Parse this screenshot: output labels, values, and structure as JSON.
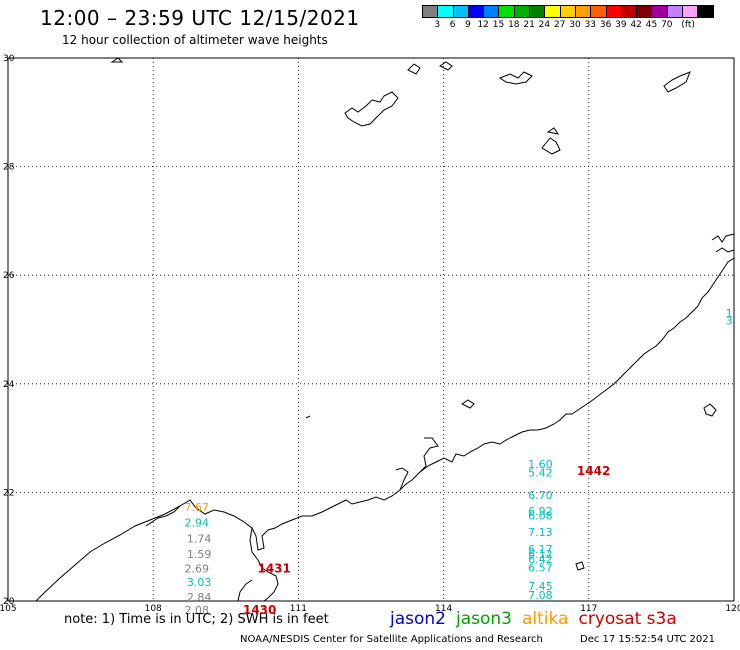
{
  "header": {
    "title": "12:00 – 23:59 UTC 12/15/2021",
    "subtitle": "12 hour collection of altimeter wave heights"
  },
  "legend": {
    "colors": [
      "#808080",
      "#00ffff",
      "#00c0ff",
      "#0000ff",
      "#0080ff",
      "#00e000",
      "#00b000",
      "#008000",
      "#ffff00",
      "#ffd000",
      "#ffa000",
      "#ff6000",
      "#ff0000",
      "#c00000",
      "#800000",
      "#a000a0",
      "#c080ff",
      "#ffa0ff",
      "#000000"
    ],
    "labels": [
      "3",
      "6",
      "9",
      "12",
      "15",
      "18",
      "21",
      "24",
      "27",
      "30",
      "33",
      "36",
      "39",
      "42",
      "45",
      "70",
      "(ft)"
    ]
  },
  "axes": {
    "lon_ticks": [
      "105",
      "108",
      "111",
      "114",
      "117",
      "120"
    ],
    "lat_ticks": [
      "30",
      "28",
      "26",
      "24",
      "22",
      "20"
    ]
  },
  "observations": [
    {
      "value": "7.67",
      "lon": 108.9,
      "lat": 21.73,
      "color": "#ffa000"
    },
    {
      "value": "2.94",
      "lon": 108.9,
      "lat": 21.45,
      "color": "#00c0c0"
    },
    {
      "value": "1.74",
      "lon": 108.95,
      "lat": 21.15,
      "color": "#808080"
    },
    {
      "value": "1.59",
      "lon": 108.95,
      "lat": 20.87,
      "color": "#808080"
    },
    {
      "value": "2.69",
      "lon": 108.9,
      "lat": 20.6,
      "color": "#808080"
    },
    {
      "value": "3.03",
      "lon": 108.95,
      "lat": 20.35,
      "color": "#00c0c0"
    },
    {
      "value": "2.84",
      "lon": 108.95,
      "lat": 20.07,
      "color": "#808080"
    },
    {
      "value": "2.08",
      "lon": 108.9,
      "lat": 19.83,
      "color": "#808080"
    },
    {
      "value": "1.60",
      "lon": 116.0,
      "lat": 22.52,
      "color": "#00c0c0"
    },
    {
      "value": "5.42",
      "lon": 116.0,
      "lat": 22.37,
      "color": "#00c0c0"
    },
    {
      "value": "6.70",
      "lon": 116.0,
      "lat": 21.95,
      "color": "#00c0c0"
    },
    {
      "value": "6.92",
      "lon": 116.0,
      "lat": 21.66,
      "color": "#00c0c0"
    },
    {
      "value": "6.08",
      "lon": 116.0,
      "lat": 21.57,
      "color": "#00c0c0"
    },
    {
      "value": "7.13",
      "lon": 116.0,
      "lat": 21.27,
      "color": "#00c0c0"
    },
    {
      "value": "6.17",
      "lon": 116.0,
      "lat": 20.96,
      "color": "#00c0c0"
    },
    {
      "value": "6.12",
      "lon": 116.0,
      "lat": 20.87,
      "color": "#00c0c0"
    },
    {
      "value": "6.42",
      "lon": 116.0,
      "lat": 20.77,
      "color": "#00c0c0"
    },
    {
      "value": "6.57",
      "lon": 116.0,
      "lat": 20.62,
      "color": "#00c0c0"
    },
    {
      "value": "7.45",
      "lon": 116.0,
      "lat": 20.28,
      "color": "#00c0c0"
    },
    {
      "value": "7.08",
      "lon": 116.0,
      "lat": 20.11,
      "color": "#00c0c0"
    },
    {
      "value": "1",
      "lon": 119.9,
      "lat": 25.3,
      "color": "#00c0c0"
    },
    {
      "value": "3",
      "lon": 119.9,
      "lat": 25.17,
      "color": "#00c0c0"
    }
  ],
  "pass_times": [
    {
      "value": "1442",
      "lon": 117.1,
      "lat": 22.39
    },
    {
      "value": "1431",
      "lon": 110.5,
      "lat": 20.6
    },
    {
      "value": "1430",
      "lon": 110.2,
      "lat": 19.83
    }
  ],
  "footer": {
    "note": "note: 1) Time is in UTC; 2) SWH is in feet",
    "satellites": [
      {
        "name": "jason2",
        "color": "#0000cc"
      },
      {
        "name": "jason3",
        "color": "#00a000"
      },
      {
        "name": "altika",
        "color": "#ff9900"
      },
      {
        "name": "cryosat s3a",
        "color": "#cc0000"
      }
    ],
    "credit": "NOAA/NESDIS Center for Satellite Applications and Research",
    "timestamp": "Dec 17 15:52:54 UTC 2021"
  }
}
